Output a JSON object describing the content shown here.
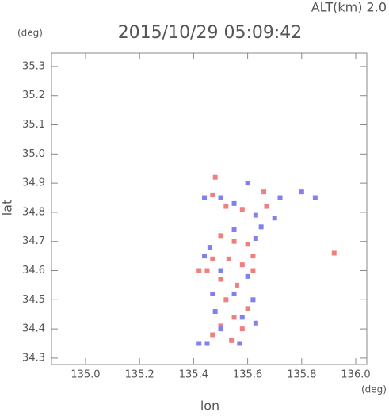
{
  "chart_data": {
    "type": "scatter",
    "title": "2015/10/29 05:09:42",
    "subtitle": "ALT(km) 2.0",
    "x_label": "lon",
    "y_label": "lat",
    "x_unit": "(deg)",
    "y_unit": "(deg)",
    "xlim": [
      134.874,
      136.041
    ],
    "ylim": [
      34.278,
      35.346
    ],
    "xticks": [
      {
        "value": 135,
        "label": "135.0"
      },
      135.2,
      135.4,
      135.6,
      135.8,
      {
        "value": 136,
        "label": "136.0"
      }
    ],
    "yticks": [
      34.3,
      34.4,
      34.5,
      34.6,
      34.7,
      34.8,
      34.9,
      {
        "value": 35,
        "label": "35.0"
      },
      35.1,
      35.2,
      35.3
    ],
    "series": [
      {
        "color": "#f08080",
        "x": [
          135.48,
          135.47,
          135.52,
          135.58,
          135.66,
          135.67,
          135.5,
          135.55,
          135.6,
          135.47,
          135.53,
          135.58,
          135.62,
          135.45,
          135.5,
          135.56,
          135.52,
          135.6,
          135.55,
          135.5,
          135.58,
          135.47,
          135.92,
          135.62,
          135.42,
          135.54
        ],
        "y": [
          34.92,
          34.86,
          34.82,
          34.81,
          34.87,
          34.82,
          34.72,
          34.7,
          34.69,
          34.64,
          34.64,
          34.62,
          34.6,
          34.6,
          34.57,
          34.55,
          34.5,
          34.47,
          34.44,
          34.41,
          34.4,
          34.38,
          34.66,
          34.65,
          34.6,
          34.36
        ]
      },
      {
        "color": "#8080f0",
        "x": [
          135.44,
          135.5,
          135.55,
          135.63,
          135.7,
          135.8,
          135.85,
          135.72,
          135.6,
          135.46,
          135.55,
          135.63,
          135.44,
          135.5,
          135.6,
          135.47,
          135.55,
          135.62,
          135.48,
          135.58,
          135.63,
          135.5,
          135.45,
          135.57,
          135.42,
          135.65
        ],
        "y": [
          34.85,
          34.85,
          34.83,
          34.79,
          34.78,
          34.87,
          34.85,
          34.85,
          34.9,
          34.68,
          34.74,
          34.71,
          34.65,
          34.6,
          34.58,
          34.52,
          34.52,
          34.5,
          34.46,
          34.44,
          34.42,
          34.4,
          34.35,
          34.35,
          34.35,
          34.75
        ]
      }
    ]
  }
}
